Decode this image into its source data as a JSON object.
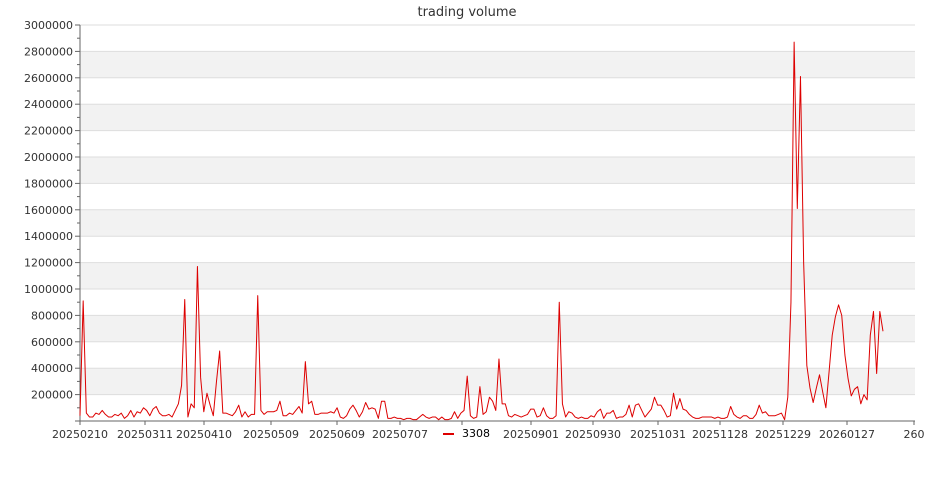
{
  "chart_data": {
    "type": "line",
    "title": "trading volume",
    "xlabel": "",
    "ylabel": "",
    "ylim": [
      0,
      3000000
    ],
    "y_ticks": [
      200000,
      400000,
      600000,
      800000,
      1000000,
      1200000,
      1400000,
      1600000,
      1800000,
      2000000,
      2200000,
      2400000,
      2600000,
      2800000,
      3000000
    ],
    "x_tick_labels": [
      "20250210",
      "20250311",
      "20250410",
      "20250509",
      "20250609",
      "20250707",
      "20250901",
      "20250930",
      "20251031",
      "20251128",
      "20251229",
      "20260127",
      "260"
    ],
    "grid": "horizontal, alternating bands",
    "legend_position": "bottom-center",
    "series": [
      {
        "name": "3308",
        "color": "#dd0000",
        "values": [
          40000,
          910000,
          60000,
          30000,
          30000,
          60000,
          50000,
          80000,
          50000,
          30000,
          30000,
          50000,
          40000,
          60000,
          20000,
          40000,
          80000,
          30000,
          70000,
          60000,
          100000,
          80000,
          40000,
          90000,
          110000,
          60000,
          40000,
          40000,
          50000,
          30000,
          80000,
          130000,
          270000,
          920000,
          30000,
          130000,
          100000,
          1170000,
          330000,
          70000,
          210000,
          120000,
          40000,
          300000,
          530000,
          60000,
          60000,
          50000,
          40000,
          70000,
          120000,
          30000,
          70000,
          30000,
          50000,
          50000,
          950000,
          80000,
          50000,
          70000,
          70000,
          70000,
          80000,
          150000,
          40000,
          40000,
          60000,
          50000,
          80000,
          110000,
          60000,
          450000,
          130000,
          150000,
          50000,
          50000,
          60000,
          60000,
          60000,
          70000,
          60000,
          100000,
          30000,
          20000,
          40000,
          90000,
          120000,
          80000,
          30000,
          70000,
          140000,
          90000,
          100000,
          90000,
          20000,
          150000,
          150000,
          20000,
          20000,
          30000,
          20000,
          20000,
          10000,
          20000,
          20000,
          10000,
          10000,
          30000,
          50000,
          30000,
          20000,
          30000,
          30000,
          10000,
          30000,
          10000,
          10000,
          20000,
          70000,
          20000,
          60000,
          80000,
          340000,
          40000,
          20000,
          30000,
          260000,
          50000,
          70000,
          180000,
          150000,
          80000,
          470000,
          130000,
          130000,
          40000,
          30000,
          50000,
          40000,
          30000,
          40000,
          50000,
          90000,
          90000,
          30000,
          40000,
          100000,
          40000,
          20000,
          20000,
          40000,
          900000,
          130000,
          30000,
          70000,
          60000,
          30000,
          20000,
          30000,
          20000,
          20000,
          40000,
          30000,
          70000,
          90000,
          20000,
          60000,
          60000,
          80000,
          20000,
          30000,
          30000,
          50000,
          120000,
          30000,
          120000,
          130000,
          80000,
          30000,
          60000,
          90000,
          180000,
          120000,
          120000,
          80000,
          30000,
          40000,
          210000,
          90000,
          170000,
          90000,
          80000,
          50000,
          30000,
          20000,
          20000,
          30000,
          30000,
          30000,
          30000,
          20000,
          30000,
          20000,
          20000,
          30000,
          110000,
          50000,
          30000,
          20000,
          40000,
          40000,
          20000,
          20000,
          50000,
          120000,
          60000,
          70000,
          40000,
          40000,
          40000,
          50000,
          60000,
          10000,
          180000,
          900000,
          2870000,
          1610000,
          2610000,
          1200000,
          420000,
          250000,
          140000,
          250000,
          350000,
          220000,
          100000,
          370000,
          650000,
          790000,
          880000,
          800000,
          500000,
          320000,
          190000,
          240000,
          260000,
          130000,
          200000,
          160000,
          650000,
          830000,
          360000,
          830000,
          680000
        ]
      }
    ]
  }
}
